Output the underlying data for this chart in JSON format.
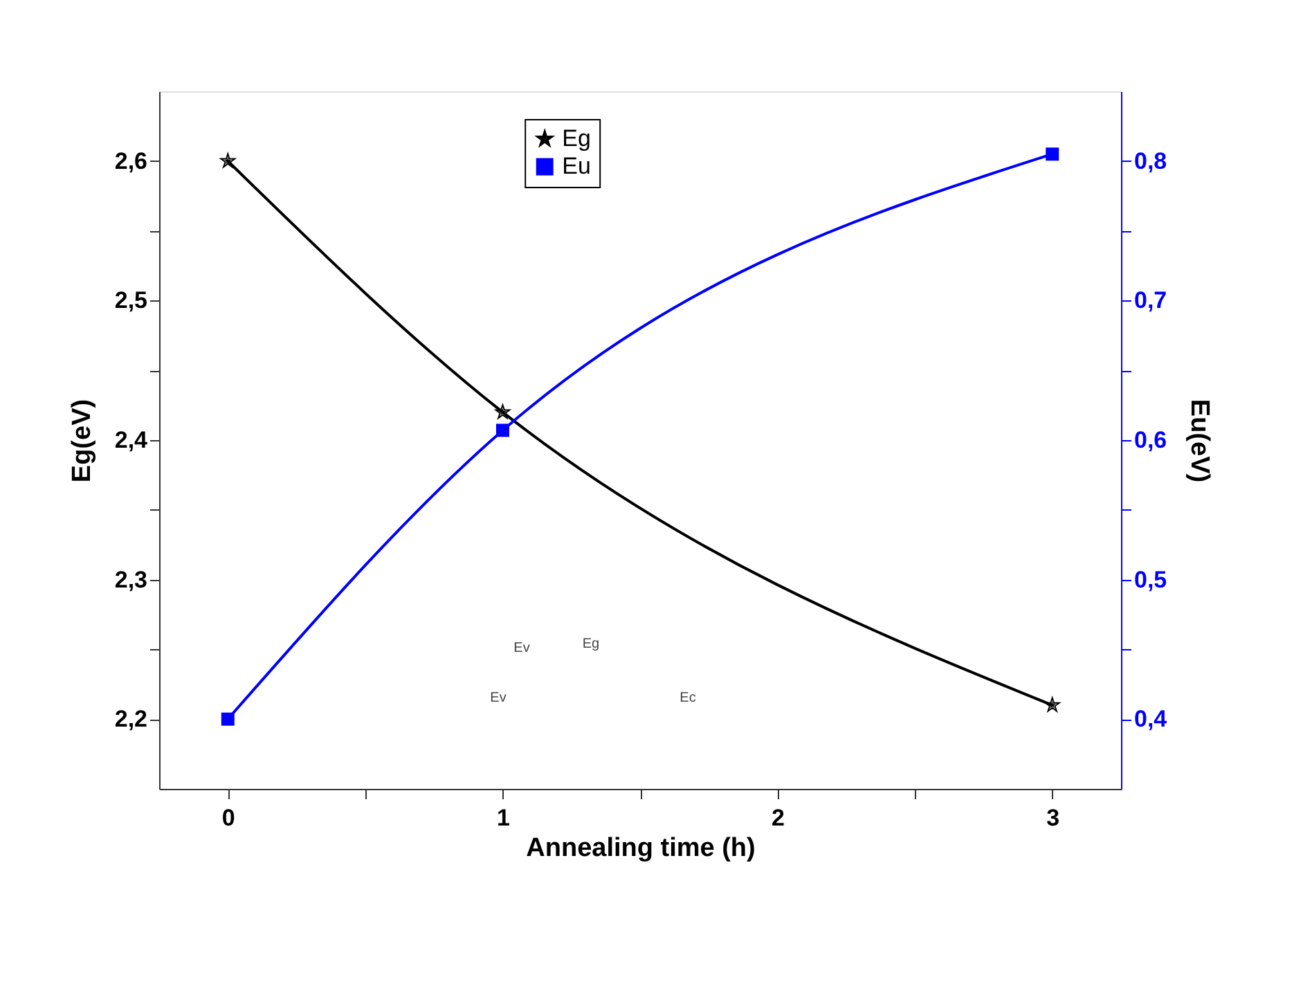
{
  "chart_data": {
    "type": "line",
    "xlabel": "Annealing time (h)",
    "ylabel": "Eg(eV)",
    "y2label": "Eu(eV)",
    "x": [
      0,
      1,
      3
    ],
    "series": [
      {
        "name": "Eg",
        "color": "#000000",
        "values": [
          2.6,
          2.42,
          2.21
        ],
        "marker": "star"
      },
      {
        "name": "Eu",
        "color": "#0000ff",
        "values": [
          0.4,
          0.607,
          0.805
        ],
        "marker": "square",
        "axis": "y2"
      }
    ],
    "xlim": [
      -0.25,
      3.25
    ],
    "xticks": [
      0,
      {
        "value": 0.5,
        "label": null
      },
      1,
      {
        "value": 1.5,
        "label": null
      },
      2,
      {
        "value": 2.5,
        "label": null
      },
      3
    ],
    "ylim": [
      2.15,
      2.65
    ],
    "yticks": [
      {
        "value": 2.2,
        "label": "2,2"
      },
      {
        "value": 2.25,
        "label": null
      },
      {
        "value": 2.3,
        "label": "2,3"
      },
      {
        "value": 2.35,
        "label": null
      },
      {
        "value": 2.4,
        "label": "2,4"
      },
      {
        "value": 2.45,
        "label": null
      },
      {
        "value": 2.5,
        "label": "2,5"
      },
      {
        "value": 2.55,
        "label": null
      },
      {
        "value": 2.6,
        "label": "2,6"
      }
    ],
    "y2lim": [
      0.35,
      0.85
    ],
    "y2ticks": [
      {
        "value": 0.4,
        "label": "0,4"
      },
      {
        "value": 0.45,
        "label": null
      },
      {
        "value": 0.5,
        "label": "0,5"
      },
      {
        "value": 0.55,
        "label": null
      },
      {
        "value": 0.6,
        "label": "0,6"
      },
      {
        "value": 0.65,
        "label": null
      },
      {
        "value": 0.7,
        "label": "0,7"
      },
      {
        "value": 0.75,
        "label": null
      },
      {
        "value": 0.8,
        "label": "0,8"
      }
    ],
    "annotations": [
      "Ev",
      "Eg",
      "Ev",
      "Ec"
    ],
    "grid": false,
    "legend": "top",
    "line_style": "solid"
  }
}
